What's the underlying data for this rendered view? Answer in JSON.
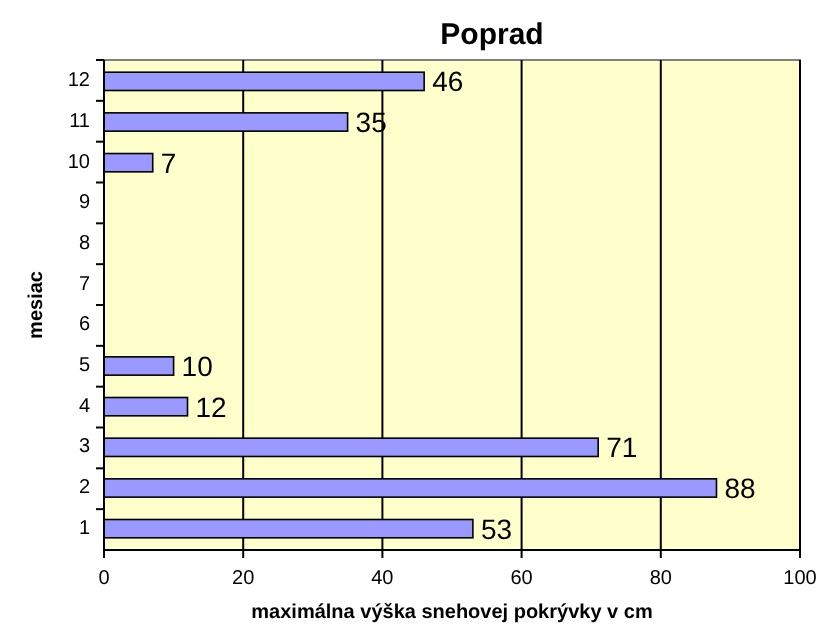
{
  "chart_data": {
    "type": "bar",
    "orientation": "horizontal",
    "title": "Poprad",
    "xlabel": "maximálna výška snehovej pokrývky v cm",
    "ylabel": "mesiac",
    "categories": [
      "12",
      "11",
      "10",
      "9",
      "8",
      "7",
      "6",
      "5",
      "4",
      "3",
      "2",
      "1"
    ],
    "values": [
      46,
      35,
      7,
      null,
      null,
      null,
      null,
      10,
      12,
      71,
      88,
      53
    ],
    "color": "#9999ff",
    "xlim": [
      0,
      100
    ],
    "xticks": [
      0,
      20,
      40,
      60,
      80,
      100
    ],
    "grid": "x",
    "data_labels": true
  }
}
